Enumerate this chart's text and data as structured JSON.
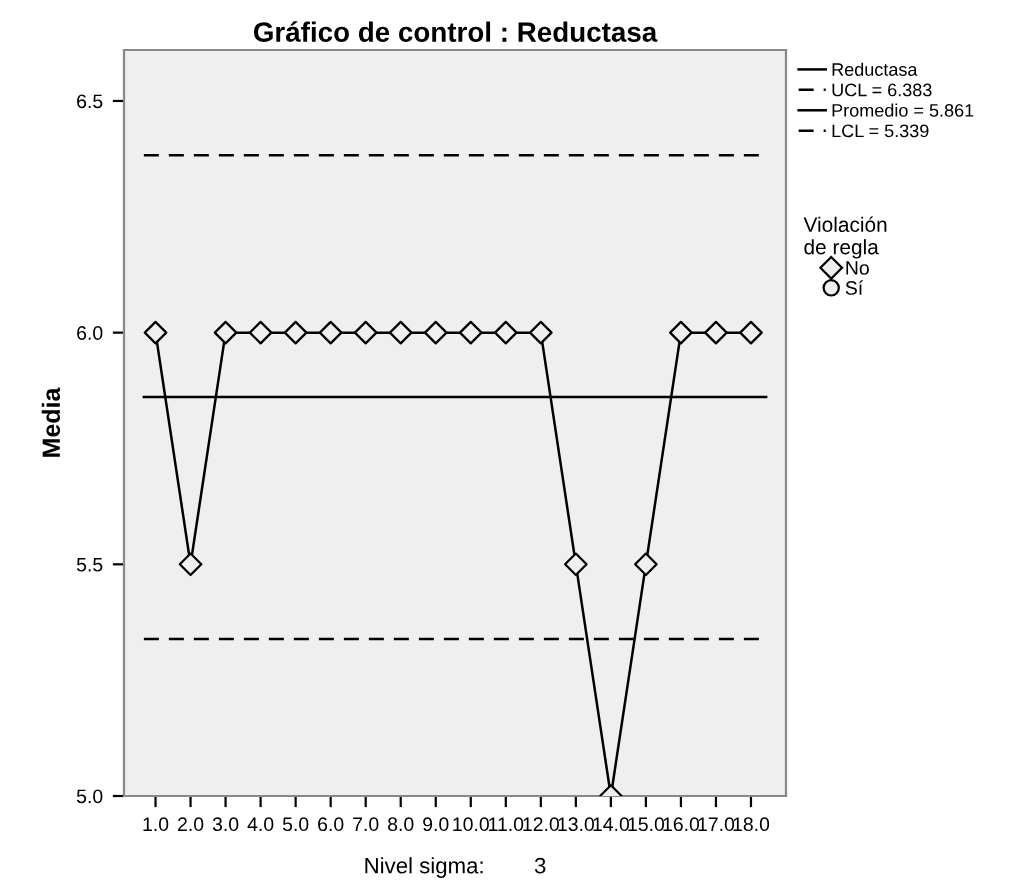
{
  "chart_data": {
    "type": "line",
    "title": "Gráfico de control : Reductasa",
    "xlabel": "Nivel sigma:        3",
    "ylabel": "Media",
    "legend_title": "Violación\nde regla",
    "x": [
      1,
      2,
      3,
      4,
      5,
      6,
      7,
      8,
      9,
      10,
      11,
      12,
      13,
      14,
      15,
      16,
      17,
      18
    ],
    "series": [
      {
        "name": "Reductasa",
        "color": "#000000",
        "marker": "none",
        "values": [
          6.0,
          5.5,
          6.0,
          6.0,
          6.0,
          6.0,
          6.0,
          6.0,
          6.0,
          6.0,
          6.0,
          6.0,
          5.5,
          5.0,
          5.5,
          6.0,
          6.0,
          6.0
        ]
      },
      {
        "name": "No",
        "type": "scatter",
        "color": "#000000",
        "marker": "diamond",
        "values": [
          6.0,
          5.5,
          6.0,
          6.0,
          6.0,
          6.0,
          6.0,
          6.0,
          6.0,
          6.0,
          6.0,
          6.0,
          5.5,
          5.0,
          5.5,
          6.0,
          6.0,
          6.0
        ]
      },
      {
        "name": "Sí",
        "type": "scatter",
        "color": "#000000",
        "marker": "circle",
        "values": [
          null,
          null,
          null,
          null,
          null,
          null,
          null,
          null,
          null,
          null,
          null,
          null,
          null,
          null,
          null,
          null,
          null,
          null
        ]
      }
    ],
    "ref_lines": [
      {
        "axis": "y",
        "value": 6.383,
        "label": "UCL = 6.383",
        "color": "#000000",
        "line_style": "dashed"
      },
      {
        "axis": "y",
        "value": 5.861,
        "label": "Promedio = 5.861",
        "color": "#000000",
        "line_style": "solid"
      },
      {
        "axis": "y",
        "value": 5.339,
        "label": "LCL = 5.339",
        "color": "#000000",
        "line_style": "dashed"
      }
    ],
    "xlim": [
      0.1,
      19.0
    ],
    "xticks": [
      {
        "value": 1,
        "label": "1.0"
      },
      {
        "value": 2,
        "label": "2.0"
      },
      {
        "value": 3,
        "label": "3.0"
      },
      {
        "value": 4,
        "label": "4.0"
      },
      {
        "value": 5,
        "label": "5.0"
      },
      {
        "value": 6,
        "label": "6.0"
      },
      {
        "value": 7,
        "label": "7.0"
      },
      {
        "value": 8,
        "label": "8.0"
      },
      {
        "value": 9,
        "label": "9.0"
      },
      {
        "value": 10,
        "label": "10.0"
      },
      {
        "value": 11,
        "label": "11.0"
      },
      {
        "value": 12,
        "label": "12.0"
      },
      {
        "value": 13,
        "label": "13.0"
      },
      {
        "value": 14,
        "label": "14.0"
      },
      {
        "value": 15,
        "label": "15.0"
      },
      {
        "value": 16,
        "label": "16.0"
      },
      {
        "value": 17,
        "label": "17.0"
      },
      {
        "value": 18,
        "label": "18.0"
      }
    ],
    "ylim": [
      5.0,
      6.61
    ],
    "yticks": [
      {
        "value": 5.0,
        "label": "5.0"
      },
      {
        "value": 5.5,
        "label": "5.5"
      },
      {
        "value": 6.0,
        "label": "6.0"
      },
      {
        "value": 6.5,
        "label": "6.5"
      }
    ],
    "grid": false,
    "legend": "right"
  }
}
